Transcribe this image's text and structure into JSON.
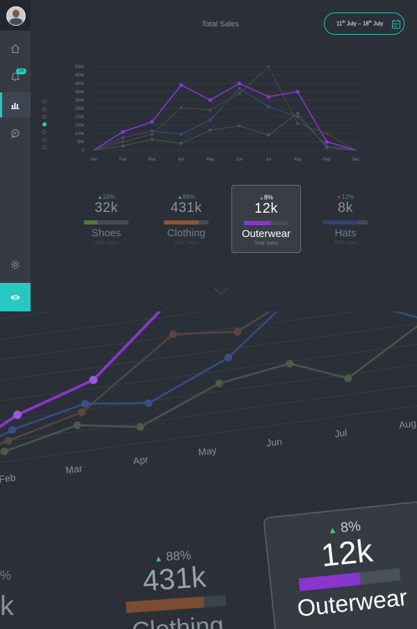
{
  "sidebar": {
    "avatar_alt": "user avatar",
    "notification_count": "15",
    "items": [
      {
        "name": "home",
        "icon": "home-icon"
      },
      {
        "name": "notifications",
        "icon": "bell-icon"
      },
      {
        "name": "analytics",
        "icon": "bar-chart-icon",
        "active": true
      },
      {
        "name": "messages",
        "icon": "chat-icon"
      },
      {
        "name": "settings",
        "icon": "gear-icon"
      }
    ],
    "bottom_button_icon": "eye-icon",
    "accent": "#27c8c1"
  },
  "header": {
    "title": "Total Sales",
    "date_range": {
      "start_day": "11",
      "start_sup": "th",
      "start_month": "July",
      "sep": " – ",
      "end_day": "18",
      "end_sup": "th",
      "end_month": "July",
      "icon": "calendar-icon"
    }
  },
  "chart_data": {
    "type": "line",
    "x": [
      "Jan",
      "Feb",
      "Mar",
      "Apr",
      "May",
      "Jun",
      "Jul",
      "Aug",
      "Sep",
      "Dec"
    ],
    "y_ticks": [
      "0",
      "50k",
      "100k",
      "150k",
      "200k",
      "250k",
      "300k",
      "350k",
      "400k",
      "450k",
      "500k"
    ],
    "ylim": [
      0,
      500000
    ],
    "grid": true,
    "series": [
      {
        "color": "#8a35d0",
        "values": [
          0,
          110000,
          170000,
          390000,
          300000,
          400000,
          320000,
          350000,
          50000,
          0
        ]
      },
      {
        "color": "#3a4f8a",
        "values": [
          0,
          75000,
          115000,
          95000,
          180000,
          370000,
          260000,
          200000,
          25000,
          0
        ]
      },
      {
        "color": "#5a4640",
        "values": [
          0,
          50000,
          95000,
          255000,
          240000,
          340000,
          500000,
          160000,
          100000,
          0
        ]
      },
      {
        "color": "#4c5a4a",
        "values": [
          0,
          25000,
          65000,
          40000,
          120000,
          145000,
          90000,
          220000,
          15000,
          0
        ]
      }
    ]
  },
  "dots": [
    false,
    false,
    false,
    true,
    false,
    false,
    false
  ],
  "cards": [
    {
      "label": "Shoes",
      "value": "32k",
      "pct": "18%",
      "trend": "up",
      "sub": "Total Sales",
      "fill": 0.3,
      "color": "#4e7a3e",
      "selected": false
    },
    {
      "label": "Clothing",
      "value": "431k",
      "pct": "88%",
      "trend": "up",
      "sub": "Total Sales",
      "fill": 0.78,
      "color": "#8a5638",
      "selected": false
    },
    {
      "label": "Outerwear",
      "value": "12k",
      "pct": "8%",
      "trend": "up",
      "sub": "Total Sales",
      "fill": 0.6,
      "color": "#8a35d0",
      "selected": true
    },
    {
      "label": "Hats",
      "value": "8k",
      "pct": "12%",
      "trend": "down",
      "sub": "Total Sales",
      "fill": 0.78,
      "color": "#34406e",
      "selected": false
    }
  ],
  "perspective": {
    "months": [
      "Feb",
      "Mar",
      "Apr",
      "May",
      "Jun",
      "Jul",
      "Aug"
    ],
    "left_partial": {
      "pct": "%",
      "value": "k"
    },
    "clothing": {
      "pct": "88%",
      "value": "431k",
      "label": "Clothing"
    },
    "outerwear": {
      "pct": "8%",
      "value": "12k",
      "label": "Outerwear"
    }
  }
}
